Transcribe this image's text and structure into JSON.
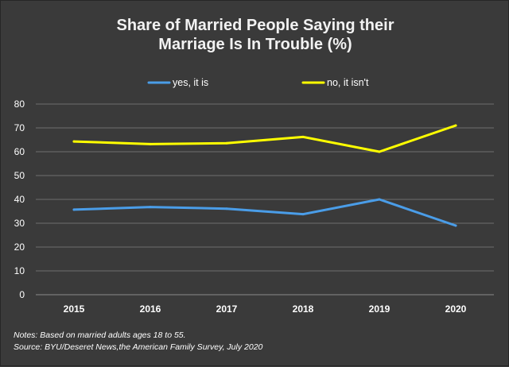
{
  "chart_data": {
    "type": "line",
    "title": "Share of Married People Saying their Marriage Is In Trouble (%)",
    "title_lines": [
      "Share of Married People Saying their",
      "Marriage Is In Trouble (%)"
    ],
    "categories": [
      "2015",
      "2016",
      "2017",
      "2018",
      "2019",
      "2020"
    ],
    "series": [
      {
        "name": "yes, it is",
        "color": "#4a9de8",
        "values": [
          35.7,
          36.8,
          36.1,
          33.8,
          40.0,
          29.0
        ]
      },
      {
        "name": "no, it isn't",
        "color": "#ffff00",
        "values": [
          64.3,
          63.2,
          63.6,
          66.2,
          60.0,
          71.0
        ]
      }
    ],
    "ylim": [
      0,
      80
    ],
    "yticks": [
      0,
      10,
      20,
      30,
      40,
      50,
      60,
      70,
      80
    ],
    "grid": true,
    "legend": "top-center",
    "xlabel": "",
    "ylabel": ""
  },
  "notes": {
    "line1": "Notes: Based on married adults ages 18 to 55.",
    "line2": "Source: BYU/Deseret News,the American Family Survey, July 2020"
  },
  "colors": {
    "background": "#3a3a3a",
    "gridline": "#6e6e6e",
    "text": "#ffffff"
  }
}
